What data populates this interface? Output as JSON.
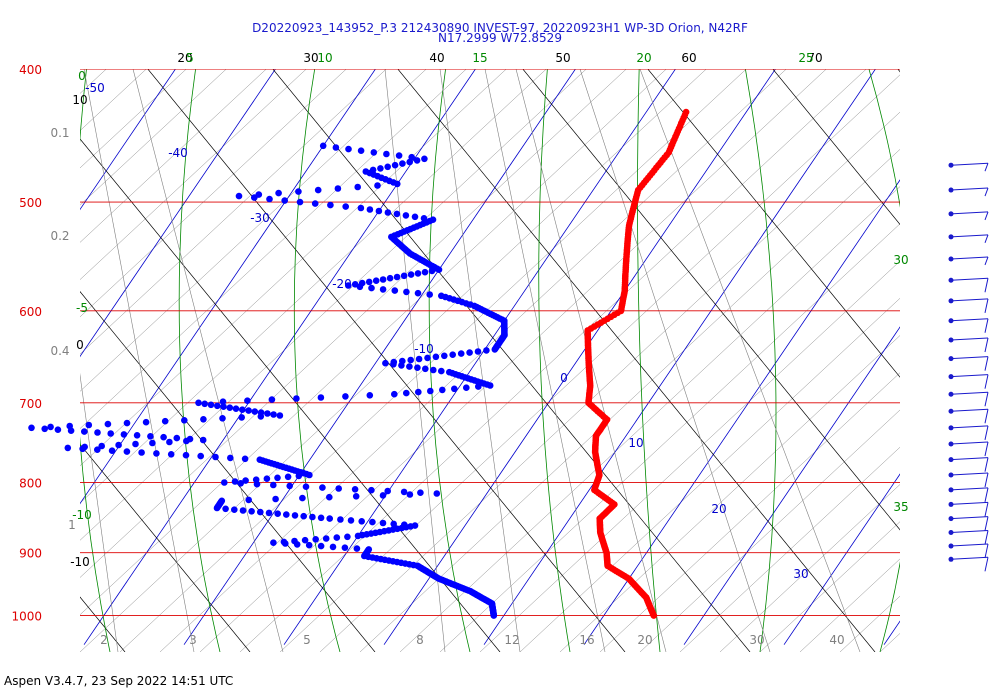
{
  "chart": {
    "title_line1": "D20220923_143952_P.3 212430890 INVEST-97, 20220923H1 WP-3D Orion, N42RF",
    "title_line2": "N17.2999 W72.8529",
    "footer": "Aspen V3.4.7, 23 Sep 2022  14:51 UTC"
  },
  "colors": {
    "isobar": "#dd0000",
    "isotherm": "#0000cc",
    "dry_adiabat": "#000000",
    "moist_adiabat": "#008800",
    "mixing_ratio": "#808080",
    "theta_grid": "#8a8a8a",
    "temperature": "#ff0000",
    "dewpoint": "#0000ff",
    "barb": "#1a1acc"
  },
  "chart_data": {
    "type": "scatter",
    "pressure_levels": [
      400,
      500,
      600,
      700,
      800,
      900,
      1000
    ],
    "ylim": [
      1010,
      400
    ],
    "isotherm_labels": [
      "-50",
      "-40",
      "-30",
      "-20",
      "-10",
      "0",
      "10",
      "20",
      "30"
    ],
    "dry_adiabat_labels_top": [
      "20",
      "30",
      "40",
      "50",
      "60",
      "70"
    ],
    "dry_adiabat_labels_left": [
      "10",
      "0",
      "-10"
    ],
    "moist_adiabat_labels_top": [
      "5",
      "10",
      "15",
      "20",
      "25"
    ],
    "moist_adiabat_labels_left": [
      "0",
      "-5",
      "-10"
    ],
    "moist_adiabat_labels_right": [
      "30",
      "35"
    ],
    "mixing_ratio_labels_left": [
      "0.1",
      "0.2",
      "0.4",
      "1"
    ],
    "mixing_ratio_labels_bottom": [
      "2",
      "3",
      "5",
      "8",
      "12",
      "16",
      "20",
      "30",
      "40"
    ],
    "series": [
      {
        "kind": "temperature",
        "points": [
          [
            430,
            -6
          ],
          [
            460,
            -5
          ],
          [
            490,
            -5.5
          ],
          [
            520,
            -4
          ],
          [
            550,
            -2
          ],
          [
            580,
            0
          ],
          [
            600,
            1
          ],
          [
            620,
            -1
          ],
          [
            650,
            1
          ],
          [
            680,
            3
          ],
          [
            700,
            4
          ],
          [
            720,
            7
          ],
          [
            740,
            7
          ],
          [
            760,
            8
          ],
          [
            790,
            10
          ],
          [
            810,
            10.5
          ],
          [
            830,
            13.5
          ],
          [
            850,
            13
          ],
          [
            870,
            14
          ],
          [
            900,
            16
          ],
          [
            920,
            17
          ],
          [
            940,
            20
          ],
          [
            970,
            23
          ],
          [
            1000,
            25
          ]
        ]
      },
      {
        "kind": "dewpoint",
        "points": [
          [
            455,
            -40
          ],
          [
            465,
            -29
          ],
          [
            475,
            -34
          ],
          [
            485,
            -30
          ],
          [
            495,
            -45
          ],
          [
            505,
            -32
          ],
          [
            515,
            -24
          ],
          [
            530,
            -27
          ],
          [
            545,
            -24
          ],
          [
            560,
            -20
          ],
          [
            575,
            -28
          ],
          [
            585,
            -18
          ],
          [
            595,
            -14
          ],
          [
            610,
            -10
          ],
          [
            625,
            -9
          ],
          [
            640,
            -9
          ],
          [
            655,
            -19
          ],
          [
            665,
            -12
          ],
          [
            680,
            -7
          ],
          [
            690,
            -16
          ],
          [
            700,
            -35
          ],
          [
            715,
            -26
          ],
          [
            730,
            -50
          ],
          [
            745,
            -32
          ],
          [
            755,
            -45
          ],
          [
            770,
            -25
          ],
          [
            790,
            -19
          ],
          [
            800,
            -27
          ],
          [
            815,
            -5
          ],
          [
            825,
            -26
          ],
          [
            835,
            -26
          ],
          [
            850,
            -14
          ],
          [
            860,
            -5
          ],
          [
            875,
            -10
          ],
          [
            885,
            -18
          ],
          [
            895,
            -8
          ],
          [
            905,
            -8
          ],
          [
            920,
            -2
          ],
          [
            940,
            1
          ],
          [
            960,
            5
          ],
          [
            980,
            8
          ],
          [
            1000,
            9
          ]
        ]
      }
    ],
    "wind_barbs": [
      {
        "p": 470,
        "speed_kt": 5
      },
      {
        "p": 490,
        "speed_kt": 5
      },
      {
        "p": 510,
        "speed_kt": 5
      },
      {
        "p": 530,
        "speed_kt": 5
      },
      {
        "p": 550,
        "speed_kt": 5
      },
      {
        "p": 570,
        "speed_kt": 10
      },
      {
        "p": 590,
        "speed_kt": 10
      },
      {
        "p": 610,
        "speed_kt": 10
      },
      {
        "p": 630,
        "speed_kt": 10
      },
      {
        "p": 650,
        "speed_kt": 10
      },
      {
        "p": 670,
        "speed_kt": 10
      },
      {
        "p": 690,
        "speed_kt": 10
      },
      {
        "p": 710,
        "speed_kt": 10
      },
      {
        "p": 730,
        "speed_kt": 10
      },
      {
        "p": 750,
        "speed_kt": 10
      },
      {
        "p": 770,
        "speed_kt": 10
      },
      {
        "p": 790,
        "speed_kt": 10
      },
      {
        "p": 810,
        "speed_kt": 10
      },
      {
        "p": 830,
        "speed_kt": 10
      },
      {
        "p": 850,
        "speed_kt": 10
      },
      {
        "p": 870,
        "speed_kt": 10
      },
      {
        "p": 890,
        "speed_kt": 10
      },
      {
        "p": 910,
        "speed_kt": 10
      }
    ]
  }
}
